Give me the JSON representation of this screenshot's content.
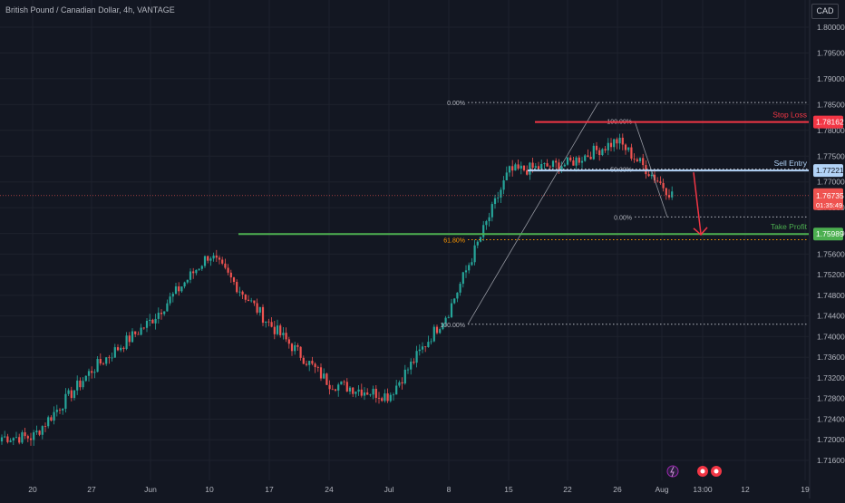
{
  "title": "British Pound / Canadian Dollar, 4h, VANTAGE",
  "currency": "CAD",
  "colors": {
    "background": "#131722",
    "bull": "#26a69a",
    "bear": "#ef5350",
    "grid": "#1e222d",
    "stop": "#f23645",
    "entry": "#b2d3f7",
    "take": "#4caf50",
    "fib_orange": "#ff9800"
  },
  "chart_data": {
    "type": "candlestick",
    "title": "British Pound / Canadian Dollar, 4h, VANTAGE",
    "y_axis": {
      "currency": "CAD",
      "ticks": [
        "1.80000",
        "1.79500",
        "1.79000",
        "1.78500",
        "1.78000",
        "1.77500",
        "1.77000",
        "1.76500",
        "1.76000",
        "1.75600",
        "1.75200",
        "1.74800",
        "1.74400",
        "1.74000",
        "1.73600",
        "1.73200",
        "1.72800",
        "1.72400",
        "1.72000",
        "1.71600"
      ],
      "range": [
        1.714,
        1.802
      ]
    },
    "x_axis": {
      "ticks": [
        "20",
        "27",
        "Jun",
        "10",
        "17",
        "24",
        "Jul",
        "8",
        "15",
        "22",
        "26",
        "Aug",
        "13:00",
        "12",
        "19"
      ]
    },
    "price_path": [
      {
        "t": "20",
        "p": 1.7205
      },
      {
        "t": "27",
        "p": 1.7335
      },
      {
        "t": "Jun",
        "p": 1.743
      },
      {
        "t": "10",
        "p": 1.756
      },
      {
        "t": "17",
        "p": 1.7425
      },
      {
        "t": "24",
        "p": 1.731
      },
      {
        "t": "Jul",
        "p": 1.7285
      },
      {
        "t": "8",
        "p": 1.745
      },
      {
        "t": "15",
        "p": 1.772
      },
      {
        "t": "22",
        "p": 1.7735
      },
      {
        "t": "26",
        "p": 1.778
      },
      {
        "t": "Aug",
        "p": 1.7674
      }
    ],
    "current_price": "1.76735",
    "countdown": "01:35:49",
    "levels": [
      {
        "name": "Stop Loss",
        "price": "1.78162"
      },
      {
        "name": "Sell Entry",
        "price": "1.77221"
      },
      {
        "name": "Take Profit",
        "price": "1.75989"
      }
    ],
    "fib_labels": [
      {
        "label": "0.00%",
        "price": 1.7854
      },
      {
        "label": "100.00%",
        "price": 1.7818
      },
      {
        "label": "50.00%",
        "price": 1.7725
      },
      {
        "label": "0.00%",
        "price": 1.7632
      },
      {
        "label": "61.80%",
        "price": 1.7588
      },
      {
        "label": "100.00%",
        "price": 1.7424
      }
    ]
  }
}
